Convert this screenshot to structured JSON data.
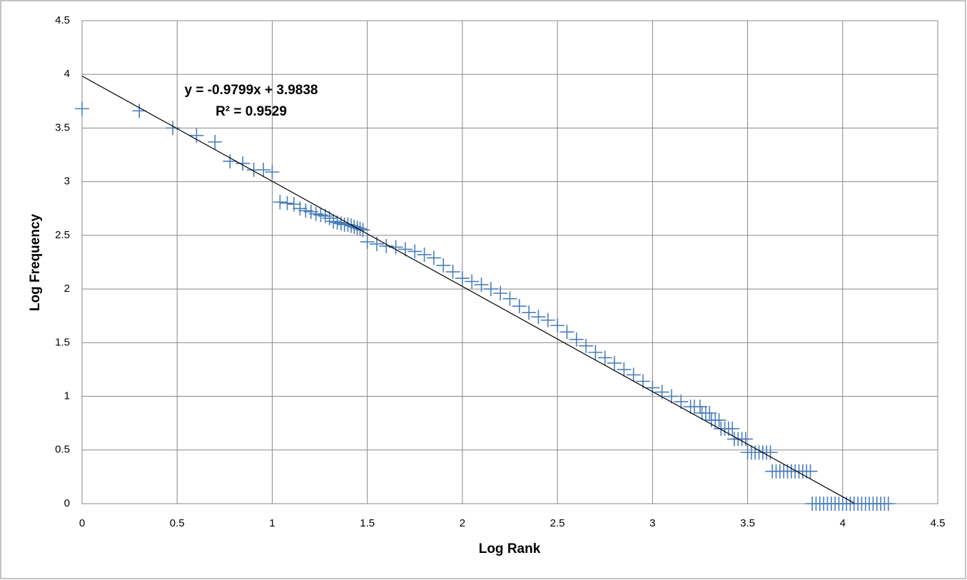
{
  "chart_data": {
    "type": "scatter",
    "x_label": "Log Rank",
    "y_label": "Log Frequency",
    "xlim": [
      0,
      4.5
    ],
    "ylim": [
      0,
      4.5
    ],
    "xticks": [
      0,
      0.5,
      1,
      1.5,
      2,
      2.5,
      3,
      3.5,
      4,
      4.5
    ],
    "yticks": [
      0,
      0.5,
      1,
      1.5,
      2,
      2.5,
      3,
      3.5,
      4,
      4.5
    ],
    "grid": true,
    "color": "#4a7ebb",
    "x": [
      0,
      0.301,
      0.477,
      0.602,
      0.699,
      0.778,
      0.845,
      0.903,
      0.954,
      1.0,
      1.041,
      1.079,
      1.114,
      1.146,
      1.176,
      1.204,
      1.23,
      1.255,
      1.279,
      1.301,
      1.322,
      1.342,
      1.362,
      1.38,
      1.398,
      1.415,
      1.431,
      1.447,
      1.462,
      1.477,
      1.5,
      1.55,
      1.6,
      1.65,
      1.7,
      1.75,
      1.8,
      1.85,
      1.9,
      1.95,
      2.0,
      2.05,
      2.1,
      2.15,
      2.2,
      2.25,
      2.3,
      2.35,
      2.4,
      2.45,
      2.5,
      2.55,
      2.6,
      2.65,
      2.7,
      2.75,
      2.8,
      2.85,
      2.9,
      2.95,
      3.0,
      3.05,
      3.1,
      3.15,
      3.2,
      3.22,
      3.25,
      3.26,
      3.28,
      3.3,
      3.31,
      3.33,
      3.35,
      3.36,
      3.38,
      3.4,
      3.42,
      3.43,
      3.45,
      3.47,
      3.49,
      3.5,
      3.52,
      3.54,
      3.56,
      3.58,
      3.6,
      3.62,
      3.63,
      3.65,
      3.67,
      3.69,
      3.71,
      3.73,
      3.75,
      3.77,
      3.79,
      3.81,
      3.83,
      3.84,
      3.86,
      3.88,
      3.9,
      3.92,
      3.94,
      3.96,
      3.98,
      4.0,
      4.02,
      4.04,
      4.06,
      4.08,
      4.1,
      4.12,
      4.14,
      4.16,
      4.18,
      4.2,
      4.22,
      4.24
    ],
    "values": [
      3.68,
      3.66,
      3.5,
      3.43,
      3.37,
      3.19,
      3.17,
      3.11,
      3.11,
      3.09,
      2.81,
      2.8,
      2.79,
      2.75,
      2.73,
      2.72,
      2.7,
      2.69,
      2.68,
      2.66,
      2.63,
      2.62,
      2.61,
      2.6,
      2.6,
      2.59,
      2.58,
      2.57,
      2.56,
      2.55,
      2.44,
      2.42,
      2.4,
      2.39,
      2.37,
      2.35,
      2.32,
      2.29,
      2.22,
      2.16,
      2.1,
      2.07,
      2.04,
      2.0,
      1.96,
      1.91,
      1.84,
      1.78,
      1.74,
      1.71,
      1.66,
      1.6,
      1.53,
      1.47,
      1.41,
      1.36,
      1.31,
      1.25,
      1.2,
      1.14,
      1.08,
      1.04,
      1.0,
      0.95,
      0.903,
      0.903,
      0.903,
      0.845,
      0.845,
      0.845,
      0.778,
      0.778,
      0.778,
      0.699,
      0.699,
      0.699,
      0.699,
      0.602,
      0.602,
      0.602,
      0.602,
      0.477,
      0.477,
      0.477,
      0.477,
      0.477,
      0.477,
      0.477,
      0.301,
      0.301,
      0.301,
      0.301,
      0.301,
      0.301,
      0.301,
      0.301,
      0.301,
      0.301,
      0.301,
      0,
      0,
      0,
      0,
      0,
      0,
      0,
      0,
      0,
      0,
      0,
      0,
      0,
      0,
      0,
      0,
      0,
      0,
      0,
      0,
      0
    ],
    "trendline": {
      "slope": -0.9799,
      "intercept": 3.9838,
      "x_range": [
        0,
        4.06
      ],
      "label": "y = -0.9799x + 3.9838",
      "r2_label": "R² = 0.9529"
    }
  }
}
